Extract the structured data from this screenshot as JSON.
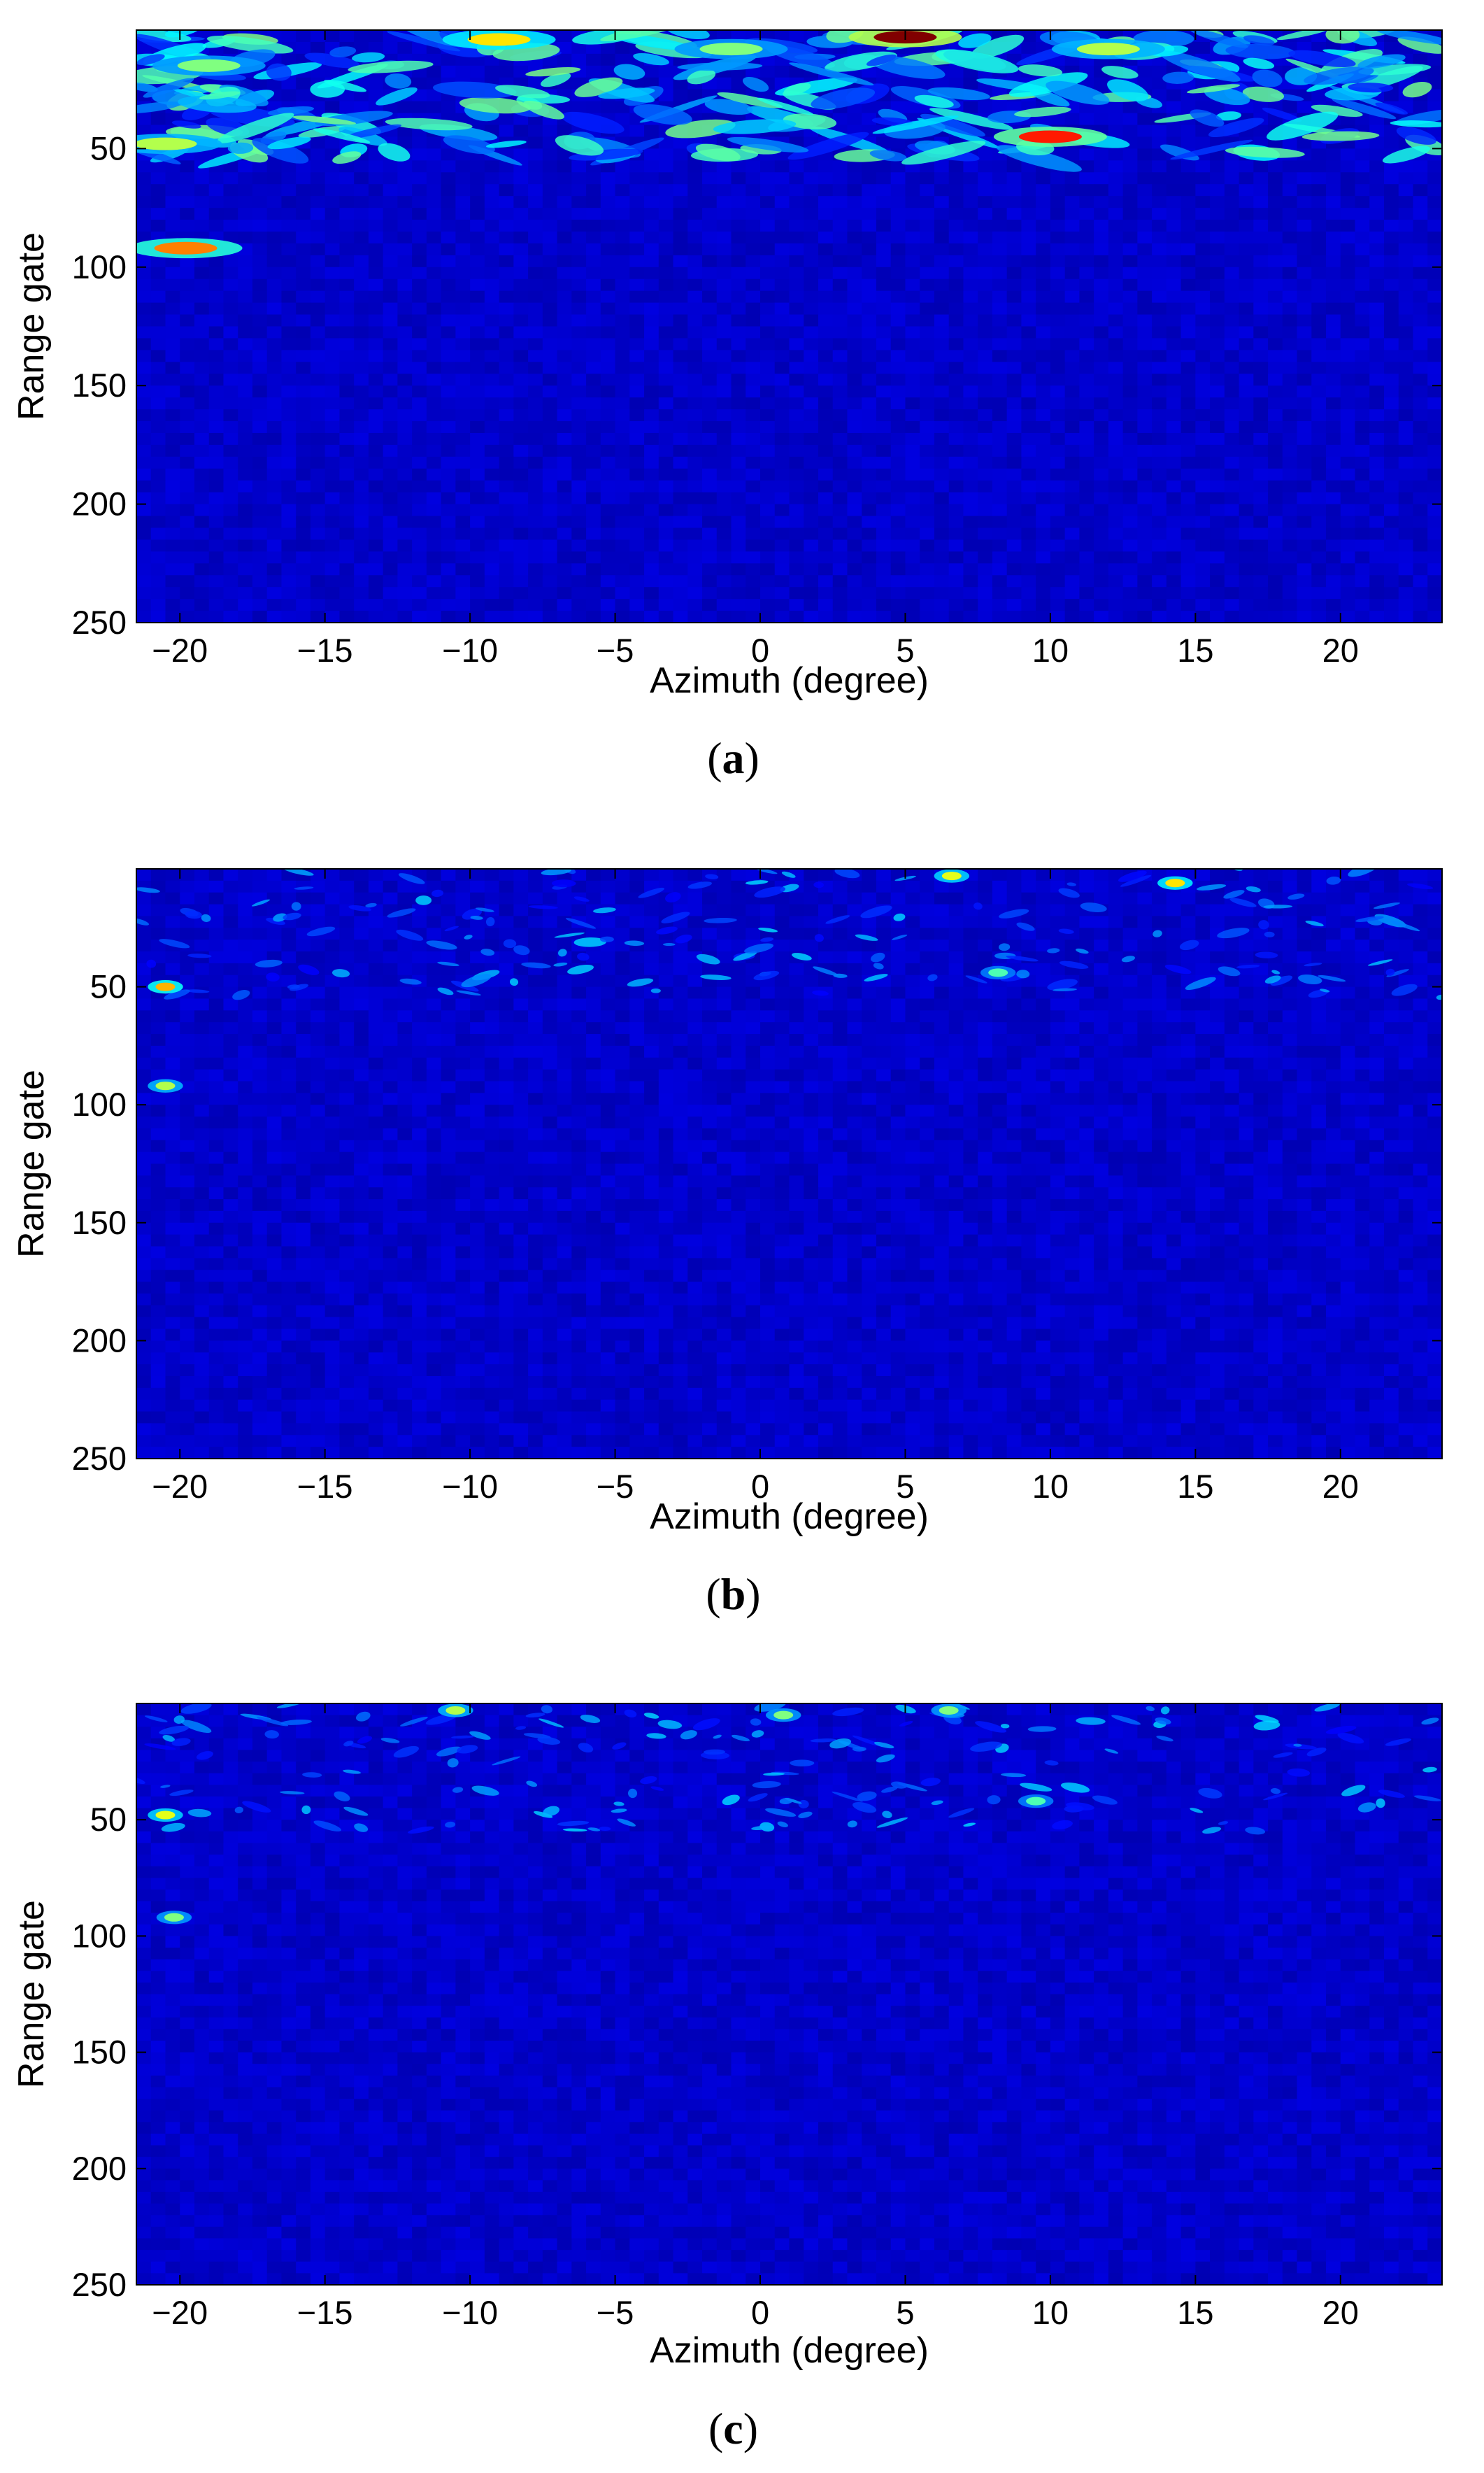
{
  "chart_data": [
    {
      "type": "heatmap",
      "caption": "(a)",
      "caption_letter": "a",
      "xlabel": "Azimuth (degree)",
      "ylabel": "Range gate",
      "xlim": [
        -21.5,
        23.5
      ],
      "ylim": [
        0,
        250
      ],
      "y_inverted": true,
      "xticks": [
        -20,
        -15,
        -10,
        -5,
        0,
        5,
        10,
        15,
        20
      ],
      "xtick_labels": [
        "−20",
        "−15",
        "−10",
        "−5",
        "0",
        "5",
        "10",
        "15",
        "20"
      ],
      "yticks": [
        50,
        100,
        150,
        200,
        250
      ],
      "ytick_labels": [
        "50",
        "100",
        "150",
        "200",
        "250"
      ],
      "colormap": "jet",
      "background_color": "#00008f",
      "clutter_band_range_gates": [
        0,
        55
      ],
      "hotspots": [
        {
          "azimuth": -19.8,
          "range": 92,
          "intensity": 0.75
        },
        {
          "azimuth": 5.0,
          "range": 3,
          "intensity": 1.0
        },
        {
          "azimuth": -9.0,
          "range": 4,
          "intensity": 0.65
        },
        {
          "azimuth": 10.0,
          "range": 45,
          "intensity": 0.85
        },
        {
          "azimuth": -19.0,
          "range": 15,
          "intensity": 0.5
        },
        {
          "azimuth": -1.0,
          "range": 8,
          "intensity": 0.5
        },
        {
          "azimuth": 12.0,
          "range": 8,
          "intensity": 0.55
        },
        {
          "azimuth": -20.5,
          "range": 48,
          "intensity": 0.55
        }
      ]
    },
    {
      "type": "heatmap",
      "caption": "(b)",
      "caption_letter": "b",
      "xlabel": "Azimuth (degree)",
      "ylabel": "Range gate",
      "xlim": [
        -21.5,
        23.5
      ],
      "ylim": [
        0,
        250
      ],
      "y_inverted": true,
      "xticks": [
        -20,
        -15,
        -10,
        -5,
        0,
        5,
        10,
        15,
        20
      ],
      "xtick_labels": [
        "−20",
        "−15",
        "−10",
        "−5",
        "0",
        "5",
        "10",
        "15",
        "20"
      ],
      "yticks": [
        50,
        100,
        150,
        200,
        250
      ],
      "ytick_labels": [
        "50",
        "100",
        "150",
        "200",
        "250"
      ],
      "colormap": "jet",
      "background_color": "#00008f",
      "clutter_band_range_gates": [
        0,
        55
      ],
      "hotspots": [
        {
          "azimuth": -20.5,
          "range": 50,
          "intensity": 0.7
        },
        {
          "azimuth": -20.5,
          "range": 92,
          "intensity": 0.55
        },
        {
          "azimuth": 6.6,
          "range": 3,
          "intensity": 0.6
        },
        {
          "azimuth": 14.3,
          "range": 6,
          "intensity": 0.65
        },
        {
          "azimuth": 8.2,
          "range": 44,
          "intensity": 0.45
        }
      ]
    },
    {
      "type": "heatmap",
      "caption": "(c)",
      "caption_letter": "c",
      "xlabel": "Azimuth (degree)",
      "ylabel": "Range gate",
      "xlim": [
        -21.5,
        23.5
      ],
      "ylim": [
        0,
        250
      ],
      "y_inverted": true,
      "xticks": [
        -20,
        -15,
        -10,
        -5,
        0,
        5,
        10,
        15,
        20
      ],
      "xtick_labels": [
        "−20",
        "−15",
        "−10",
        "−5",
        "0",
        "5",
        "10",
        "15",
        "20"
      ],
      "yticks": [
        50,
        100,
        150,
        200,
        250
      ],
      "ytick_labels": [
        "50",
        "100",
        "150",
        "200",
        "250"
      ],
      "colormap": "jet",
      "background_color": "#00008f",
      "clutter_band_range_gates": [
        0,
        55
      ],
      "hotspots": [
        {
          "azimuth": -20.5,
          "range": 48,
          "intensity": 0.6
        },
        {
          "azimuth": -20.2,
          "range": 92,
          "intensity": 0.5
        },
        {
          "azimuth": -10.5,
          "range": 3,
          "intensity": 0.55
        },
        {
          "azimuth": 0.8,
          "range": 5,
          "intensity": 0.5
        },
        {
          "azimuth": 6.5,
          "range": 3,
          "intensity": 0.5
        },
        {
          "azimuth": 9.5,
          "range": 42,
          "intensity": 0.45
        }
      ]
    }
  ]
}
